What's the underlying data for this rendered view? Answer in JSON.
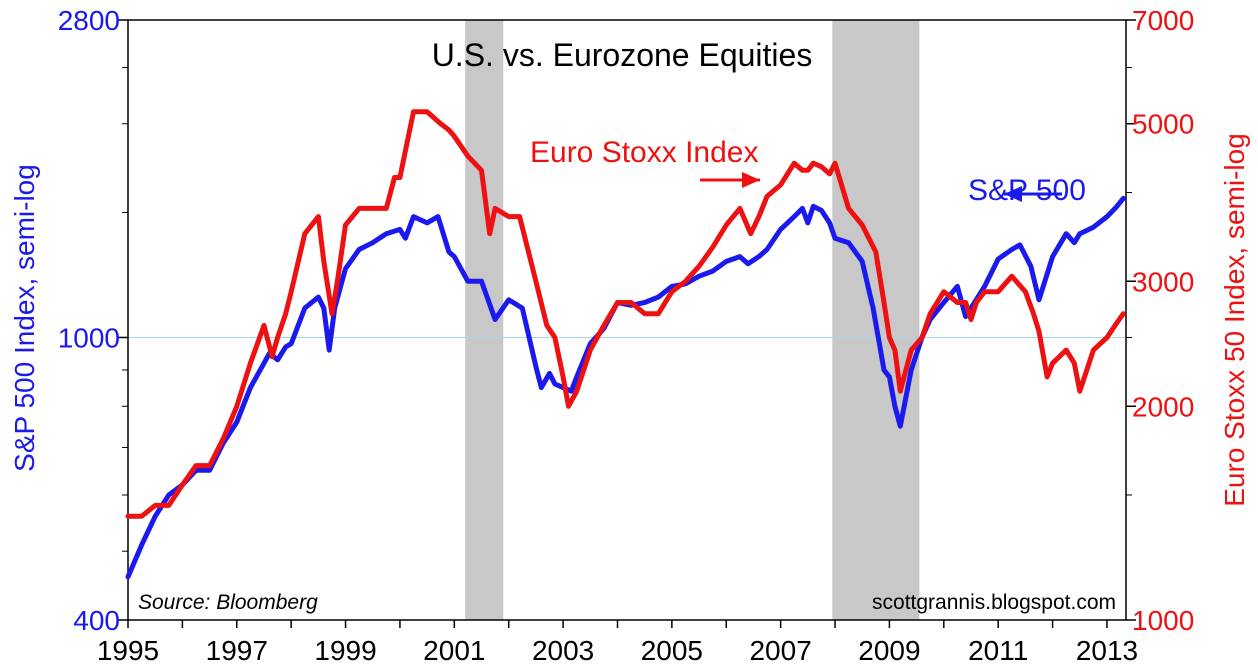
{
  "chart_data": {
    "type": "line",
    "title": "U.S. vs. Eurozone Equities",
    "source": "Source:  Bloomberg",
    "credit": "scottgrannis.blogspot.com",
    "xlim": [
      1995.0,
      2013.35
    ],
    "x_ticks": [
      1995,
      1997,
      1999,
      2001,
      2003,
      2005,
      2007,
      2009,
      2011,
      2013
    ],
    "y_left": {
      "label": "S&P 500 Index, semi-log",
      "scale": "log",
      "range": [
        400,
        2800
      ],
      "ticks": [
        400,
        1000,
        2800
      ],
      "minor_ticks": [
        500,
        600,
        700,
        800,
        900,
        1500,
        2000,
        2400
      ],
      "color": "#1a1aee"
    },
    "y_right": {
      "label": "Euro Stoxx 50 Index, semi-log",
      "scale": "log",
      "range": [
        1000,
        7000
      ],
      "ticks": [
        1000,
        2000,
        3000,
        5000,
        7000
      ],
      "minor_ticks": [
        1500,
        2500,
        4000,
        6000
      ],
      "color": "#ee1111"
    },
    "recessions": [
      [
        2001.2,
        2001.9
      ],
      [
        2007.95,
        2009.55
      ]
    ],
    "gridline": 1000,
    "annotations": {
      "euro": "Euro Stoxx Index",
      "sp": "S&P 500"
    },
    "series": [
      {
        "name": "S&P 500",
        "axis": "left",
        "color": "#1a1aee",
        "x": [
          1995.0,
          1995.25,
          1995.5,
          1995.75,
          1996.0,
          1996.25,
          1996.5,
          1996.75,
          1997.0,
          1997.25,
          1997.5,
          1997.6,
          1997.75,
          1997.9,
          1998.0,
          1998.25,
          1998.5,
          1998.6,
          1998.7,
          1998.8,
          1999.0,
          1999.25,
          1999.5,
          1999.75,
          2000.0,
          2000.1,
          2000.25,
          2000.5,
          2000.7,
          2000.9,
          2001.0,
          2001.25,
          2001.5,
          2001.75,
          2002.0,
          2002.25,
          2002.5,
          2002.6,
          2002.75,
          2002.85,
          2003.0,
          2003.15,
          2003.25,
          2003.5,
          2003.75,
          2004.0,
          2004.25,
          2004.5,
          2004.75,
          2005.0,
          2005.25,
          2005.5,
          2005.75,
          2006.0,
          2006.25,
          2006.4,
          2006.6,
          2006.75,
          2007.0,
          2007.25,
          2007.4,
          2007.5,
          2007.6,
          2007.75,
          2007.9,
          2008.0,
          2008.25,
          2008.5,
          2008.7,
          2008.9,
          2009.0,
          2009.1,
          2009.2,
          2009.4,
          2009.6,
          2009.75,
          2010.0,
          2010.25,
          2010.4,
          2010.5,
          2010.75,
          2011.0,
          2011.25,
          2011.4,
          2011.6,
          2011.75,
          2012.0,
          2012.25,
          2012.4,
          2012.5,
          2012.75,
          2013.0,
          2013.15,
          2013.3
        ],
        "values": [
          460,
          510,
          560,
          600,
          620,
          650,
          650,
          710,
          760,
          850,
          920,
          950,
          930,
          970,
          980,
          1100,
          1140,
          1100,
          960,
          1100,
          1250,
          1330,
          1360,
          1400,
          1420,
          1380,
          1480,
          1450,
          1480,
          1320,
          1300,
          1200,
          1200,
          1060,
          1130,
          1100,
          910,
          850,
          890,
          860,
          850,
          840,
          880,
          980,
          1030,
          1120,
          1110,
          1120,
          1140,
          1180,
          1190,
          1220,
          1240,
          1280,
          1300,
          1270,
          1300,
          1330,
          1420,
          1480,
          1520,
          1450,
          1530,
          1510,
          1450,
          1380,
          1360,
          1280,
          1100,
          900,
          880,
          800,
          750,
          900,
          1000,
          1060,
          1120,
          1180,
          1070,
          1100,
          1180,
          1290,
          1330,
          1350,
          1260,
          1130,
          1300,
          1400,
          1360,
          1400,
          1430,
          1480,
          1520,
          1570
        ]
      },
      {
        "name": "Euro Stoxx Index",
        "axis": "right",
        "color": "#ee1111",
        "x": [
          1995.0,
          1995.25,
          1995.5,
          1995.75,
          1996.0,
          1996.25,
          1996.5,
          1996.75,
          1997.0,
          1997.25,
          1997.5,
          1997.65,
          1997.75,
          1997.9,
          1998.0,
          1998.25,
          1998.5,
          1998.6,
          1998.75,
          1998.85,
          1999.0,
          1999.25,
          1999.5,
          1999.75,
          1999.9,
          2000.0,
          2000.25,
          2000.5,
          2000.75,
          2000.9,
          2001.0,
          2001.25,
          2001.5,
          2001.65,
          2001.75,
          2002.0,
          2002.2,
          2002.5,
          2002.7,
          2002.85,
          2003.0,
          2003.1,
          2003.25,
          2003.5,
          2003.75,
          2004.0,
          2004.25,
          2004.5,
          2004.75,
          2005.0,
          2005.25,
          2005.5,
          2005.75,
          2006.0,
          2006.25,
          2006.45,
          2006.6,
          2006.75,
          2007.0,
          2007.25,
          2007.4,
          2007.5,
          2007.6,
          2007.75,
          2007.9,
          2008.0,
          2008.25,
          2008.5,
          2008.75,
          2008.9,
          2009.0,
          2009.1,
          2009.2,
          2009.4,
          2009.6,
          2009.75,
          2010.0,
          2010.25,
          2010.4,
          2010.5,
          2010.6,
          2010.75,
          2011.0,
          2011.25,
          2011.5,
          2011.65,
          2011.75,
          2011.9,
          2012.0,
          2012.25,
          2012.4,
          2012.5,
          2012.75,
          2013.0,
          2013.15,
          2013.3
        ],
        "values": [
          1400,
          1400,
          1450,
          1450,
          1550,
          1650,
          1650,
          1800,
          2000,
          2300,
          2600,
          2350,
          2500,
          2700,
          2900,
          3500,
          3700,
          3200,
          2700,
          3000,
          3600,
          3800,
          3800,
          3800,
          4200,
          4200,
          5200,
          5200,
          5000,
          4900,
          4800,
          4500,
          4300,
          3500,
          3800,
          3700,
          3700,
          3000,
          2600,
          2500,
          2200,
          2000,
          2100,
          2400,
          2600,
          2800,
          2800,
          2700,
          2700,
          2900,
          3000,
          3150,
          3350,
          3600,
          3800,
          3500,
          3700,
          3950,
          4100,
          4400,
          4300,
          4300,
          4400,
          4350,
          4250,
          4400,
          3800,
          3600,
          3300,
          2800,
          2500,
          2400,
          2100,
          2400,
          2500,
          2700,
          2900,
          2800,
          2800,
          2650,
          2800,
          2900,
          2900,
          3050,
          2900,
          2700,
          2550,
          2200,
          2300,
          2400,
          2300,
          2100,
          2400,
          2500,
          2600,
          2700
        ]
      }
    ]
  }
}
